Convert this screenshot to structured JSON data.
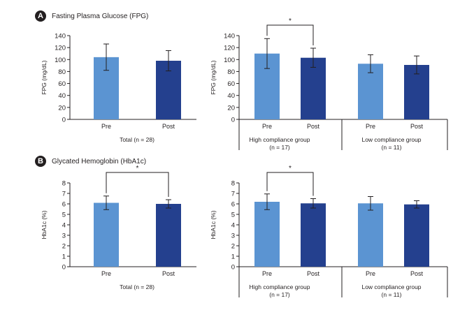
{
  "panels": [
    {
      "letter": "A",
      "title": "Fasting Plasma Glucose (FPG)"
    },
    {
      "letter": "B",
      "title": "Glycated Hemoglobin (HbA1c)"
    }
  ],
  "colors": {
    "pre": "#5b94d2",
    "post": "#24408e",
    "axis": "#231f20"
  },
  "chart_data": [
    {
      "type": "bar",
      "panel": "A",
      "ylabel": "FPG (mg/dL)",
      "ylim": [
        0,
        140
      ],
      "yticks": [
        0,
        20,
        40,
        60,
        80,
        100,
        120,
        140
      ],
      "categories": [
        "Pre",
        "Post"
      ],
      "group_labels": [
        "Total (n = 28)"
      ],
      "values": [
        104,
        98
      ],
      "errors": [
        22,
        17
      ],
      "significance": []
    },
    {
      "type": "bar",
      "panel": "A",
      "ylabel": "FPG (mg/dL)",
      "ylim": [
        0,
        140
      ],
      "yticks": [
        0,
        20,
        40,
        60,
        80,
        100,
        120,
        140
      ],
      "categories": [
        "Pre",
        "Post",
        "Pre",
        "Post"
      ],
      "group_labels": [
        "High compliance group\n(n = 17)",
        "Low compliance group\n(n = 11)"
      ],
      "values": [
        110,
        103,
        93,
        91
      ],
      "errors": [
        25,
        16,
        15,
        15
      ],
      "significance": [
        {
          "from": 0,
          "to": 1,
          "label": "*"
        }
      ]
    },
    {
      "type": "bar",
      "panel": "B",
      "ylabel": "HbA1c (%)",
      "ylim": [
        0,
        8
      ],
      "yticks": [
        0,
        1,
        2,
        3,
        4,
        5,
        6,
        7,
        8
      ],
      "categories": [
        "Pre",
        "Post"
      ],
      "group_labels": [
        "Total (n = 28)"
      ],
      "values": [
        6.1,
        6.0
      ],
      "errors": [
        0.65,
        0.4
      ],
      "significance": [
        {
          "from": 0,
          "to": 1,
          "label": "*"
        }
      ]
    },
    {
      "type": "bar",
      "panel": "B",
      "ylabel": "HbA1c (%)",
      "ylim": [
        0,
        8
      ],
      "yticks": [
        0,
        1,
        2,
        3,
        4,
        5,
        6,
        7,
        8
      ],
      "categories": [
        "Pre",
        "Post",
        "Pre",
        "Post"
      ],
      "group_labels": [
        "High compliance group\n(n = 17)",
        "Low compliance group\n(n = 11)"
      ],
      "values": [
        6.2,
        6.05,
        6.05,
        5.95
      ],
      "errors": [
        0.75,
        0.45,
        0.65,
        0.35
      ],
      "significance": [
        {
          "from": 0,
          "to": 1,
          "label": "*"
        }
      ]
    }
  ]
}
